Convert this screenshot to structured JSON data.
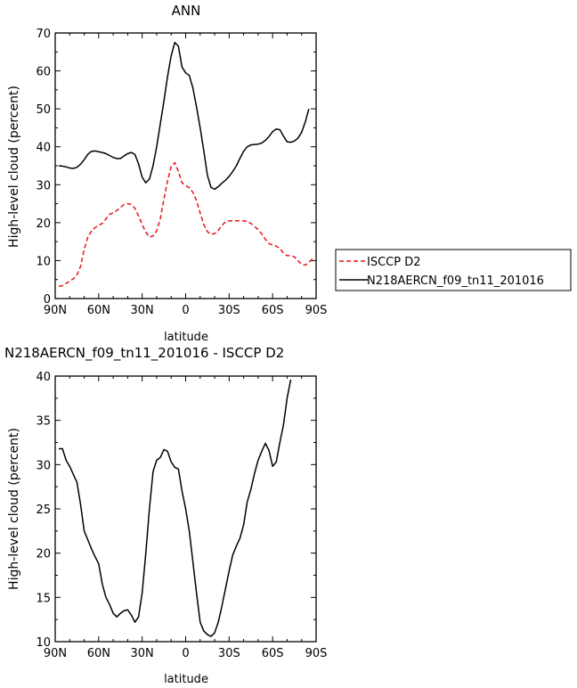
{
  "chart_data": [
    {
      "type": "line",
      "title": "ANN",
      "xlabel": "latitude",
      "ylabel": "High-level cloud (percent)",
      "xlim": [
        -90,
        90
      ],
      "ylim": [
        0,
        70
      ],
      "x_ticks": [
        {
          "value": -90,
          "label": "90N"
        },
        {
          "value": -60,
          "label": "60N"
        },
        {
          "value": -30,
          "label": "30N"
        },
        {
          "value": 0,
          "label": "0"
        },
        {
          "value": 30,
          "label": "30S"
        },
        {
          "value": 60,
          "label": "60S"
        },
        {
          "value": 90,
          "label": "90S"
        }
      ],
      "y_ticks": [
        0,
        10,
        20,
        30,
        40,
        50,
        60,
        70
      ],
      "legend": "right",
      "series": [
        {
          "name": "ISCCP D2",
          "color": "#e8141c",
          "dash": true,
          "points": [
            [
              -87.5,
              3.2
            ],
            [
              -85,
              3.4
            ],
            [
              -82.5,
              4.0
            ],
            [
              -80,
              4.6
            ],
            [
              -77.5,
              5.2
            ],
            [
              -75,
              6.2
            ],
            [
              -72.5,
              8.5
            ],
            [
              -70,
              13.0
            ],
            [
              -67.5,
              16.2
            ],
            [
              -65,
              17.8
            ],
            [
              -62.5,
              18.7
            ],
            [
              -60,
              19.3
            ],
            [
              -57.5,
              19.8
            ],
            [
              -55,
              21.0
            ],
            [
              -52.5,
              22.2
            ],
            [
              -50,
              22.6
            ],
            [
              -47.5,
              23.2
            ],
            [
              -45,
              24.0
            ],
            [
              -42.5,
              24.8
            ],
            [
              -40,
              25.0
            ],
            [
              -37.5,
              24.8
            ],
            [
              -35,
              23.8
            ],
            [
              -32.5,
              21.8
            ],
            [
              -30,
              19.5
            ],
            [
              -27.5,
              17.5
            ],
            [
              -25,
              16.2
            ],
            [
              -22.5,
              16.5
            ],
            [
              -20,
              17.8
            ],
            [
              -17.5,
              21.0
            ],
            [
              -15,
              26.2
            ],
            [
              -12.5,
              31.0
            ],
            [
              -10,
              34.8
            ],
            [
              -7.5,
              35.8
            ],
            [
              -5,
              33.5
            ],
            [
              -2.5,
              30.5
            ],
            [
              0,
              29.8
            ],
            [
              2.5,
              29.2
            ],
            [
              5,
              28.0
            ],
            [
              7.5,
              25.8
            ],
            [
              10,
              22.6
            ],
            [
              12.5,
              19.5
            ],
            [
              15,
              17.6
            ],
            [
              17.5,
              17.0
            ],
            [
              20,
              17.1
            ],
            [
              22.5,
              18.0
            ],
            [
              25,
              19.3
            ],
            [
              27.5,
              20.2
            ],
            [
              30,
              20.5
            ],
            [
              32.5,
              20.5
            ],
            [
              35,
              20.5
            ],
            [
              37.5,
              20.5
            ],
            [
              40,
              20.5
            ],
            [
              42.5,
              20.3
            ],
            [
              45,
              19.8
            ],
            [
              47.5,
              19.0
            ],
            [
              50,
              18.2
            ],
            [
              52.5,
              17.0
            ],
            [
              55,
              15.6
            ],
            [
              57.5,
              14.5
            ],
            [
              60,
              14.1
            ],
            [
              62.5,
              13.8
            ],
            [
              65,
              13.2
            ],
            [
              67.5,
              12.0
            ],
            [
              70,
              11.3
            ],
            [
              72.5,
              11.3
            ],
            [
              75,
              11.0
            ],
            [
              77.5,
              10.0
            ],
            [
              80,
              9.0
            ],
            [
              82.5,
              8.8
            ],
            [
              85,
              9.5
            ],
            [
              87.5,
              10.5
            ]
          ]
        },
        {
          "name": "N218AERCN_f09_tn11_201016",
          "color": "#000000",
          "dash": false,
          "points": [
            [
              -87.5,
              35.0
            ],
            [
              -85,
              34.9
            ],
            [
              -82.5,
              34.7
            ],
            [
              -80,
              34.4
            ],
            [
              -77.5,
              34.3
            ],
            [
              -75,
              34.6
            ],
            [
              -72.5,
              35.4
            ],
            [
              -70,
              36.6
            ],
            [
              -67.5,
              38.0
            ],
            [
              -65,
              38.8
            ],
            [
              -62.5,
              38.9
            ],
            [
              -60,
              38.7
            ],
            [
              -57.5,
              38.5
            ],
            [
              -55,
              38.2
            ],
            [
              -52.5,
              37.7
            ],
            [
              -50,
              37.2
            ],
            [
              -47.5,
              36.9
            ],
            [
              -45,
              36.9
            ],
            [
              -42.5,
              37.6
            ],
            [
              -40,
              38.2
            ],
            [
              -37.5,
              38.5
            ],
            [
              -35,
              38.0
            ],
            [
              -32.5,
              35.5
            ],
            [
              -30,
              32.0
            ],
            [
              -27.5,
              30.5
            ],
            [
              -25,
              31.5
            ],
            [
              -22.5,
              35.0
            ],
            [
              -20,
              40.0
            ],
            [
              -17.5,
              46.0
            ],
            [
              -15,
              52.0
            ],
            [
              -12.5,
              58.5
            ],
            [
              -10,
              64.0
            ],
            [
              -7.5,
              67.5
            ],
            [
              -5,
              66.5
            ],
            [
              -2.5,
              61.0
            ],
            [
              0,
              59.5
            ],
            [
              2.5,
              58.8
            ],
            [
              5,
              55.5
            ],
            [
              7.5,
              50.5
            ],
            [
              10,
              45.0
            ],
            [
              12.5,
              39.0
            ],
            [
              15,
              32.5
            ],
            [
              17.5,
              29.3
            ],
            [
              20,
              28.8
            ],
            [
              22.5,
              29.5
            ],
            [
              25,
              30.4
            ],
            [
              27.5,
              31.2
            ],
            [
              30,
              32.2
            ],
            [
              32.5,
              33.5
            ],
            [
              35,
              35.0
            ],
            [
              37.5,
              37.0
            ],
            [
              40,
              38.8
            ],
            [
              42.5,
              40.0
            ],
            [
              45,
              40.5
            ],
            [
              47.5,
              40.6
            ],
            [
              50,
              40.7
            ],
            [
              52.5,
              41.0
            ],
            [
              55,
              41.7
            ],
            [
              57.5,
              42.7
            ],
            [
              60,
              44.0
            ],
            [
              62.5,
              44.7
            ],
            [
              65,
              44.5
            ],
            [
              67.5,
              42.8
            ],
            [
              70,
              41.3
            ],
            [
              72.5,
              41.2
            ],
            [
              75,
              41.5
            ],
            [
              77.5,
              42.3
            ],
            [
              80,
              43.8
            ],
            [
              82.5,
              46.5
            ],
            [
              85,
              50.0
            ]
          ]
        }
      ]
    },
    {
      "type": "line",
      "title": "N218AERCN_f09_tn11_201016 - ISCCP D2",
      "xlabel": "latitude",
      "ylabel": "High-level cloud (percent)",
      "xlim": [
        -90,
        90
      ],
      "ylim": [
        10,
        40
      ],
      "x_ticks": [
        {
          "value": -90,
          "label": "90N"
        },
        {
          "value": -60,
          "label": "60N"
        },
        {
          "value": -30,
          "label": "30N"
        },
        {
          "value": 0,
          "label": "0"
        },
        {
          "value": 30,
          "label": "30S"
        },
        {
          "value": 60,
          "label": "60S"
        },
        {
          "value": 90,
          "label": "90S"
        }
      ],
      "y_ticks": [
        10,
        15,
        20,
        25,
        30,
        35,
        40
      ],
      "series": [
        {
          "color": "#000000",
          "dash": false,
          "points": [
            [
              -87.5,
              31.8
            ],
            [
              -85,
              31.8
            ],
            [
              -82.5,
              30.5
            ],
            [
              -80,
              29.8
            ],
            [
              -77.5,
              28.9
            ],
            [
              -75,
              28.0
            ],
            [
              -72.5,
              25.5
            ],
            [
              -70,
              22.5
            ],
            [
              -67.5,
              21.5
            ],
            [
              -65,
              20.5
            ],
            [
              -62.5,
              19.6
            ],
            [
              -60,
              18.8
            ],
            [
              -57.5,
              16.5
            ],
            [
              -55,
              15.0
            ],
            [
              -52.5,
              14.2
            ],
            [
              -50,
              13.2
            ],
            [
              -47.5,
              12.8
            ],
            [
              -45,
              13.2
            ],
            [
              -42.5,
              13.5
            ],
            [
              -40,
              13.6
            ],
            [
              -37.5,
              13.0
            ],
            [
              -35,
              12.2
            ],
            [
              -32.5,
              12.8
            ],
            [
              -30,
              15.5
            ],
            [
              -27.5,
              20.0
            ],
            [
              -25,
              25.0
            ],
            [
              -22.5,
              29.2
            ],
            [
              -20,
              30.5
            ],
            [
              -17.5,
              30.8
            ],
            [
              -15,
              31.7
            ],
            [
              -12.5,
              31.5
            ],
            [
              -10,
              30.3
            ],
            [
              -7.5,
              29.7
            ],
            [
              -5,
              29.5
            ],
            [
              -2.5,
              27.0
            ],
            [
              0,
              25.0
            ],
            [
              2.5,
              22.5
            ],
            [
              5,
              19.0
            ],
            [
              7.5,
              15.5
            ],
            [
              10,
              12.2
            ],
            [
              12.5,
              11.2
            ],
            [
              15,
              10.8
            ],
            [
              17.5,
              10.6
            ],
            [
              20,
              11.0
            ],
            [
              22.5,
              12.2
            ],
            [
              25,
              14.0
            ],
            [
              27.5,
              16.0
            ],
            [
              30,
              18.0
            ],
            [
              32.5,
              19.8
            ],
            [
              35,
              20.8
            ],
            [
              37.5,
              21.7
            ],
            [
              40,
              23.2
            ],
            [
              42.5,
              25.8
            ],
            [
              45,
              27.2
            ],
            [
              47.5,
              29.0
            ],
            [
              50,
              30.5
            ],
            [
              52.5,
              31.5
            ],
            [
              55,
              32.4
            ],
            [
              57.5,
              31.6
            ],
            [
              60,
              29.8
            ],
            [
              62.5,
              30.3
            ],
            [
              65,
              32.5
            ],
            [
              67.5,
              34.5
            ],
            [
              70,
              37.5
            ],
            [
              72.5,
              39.6
            ]
          ]
        }
      ]
    }
  ]
}
